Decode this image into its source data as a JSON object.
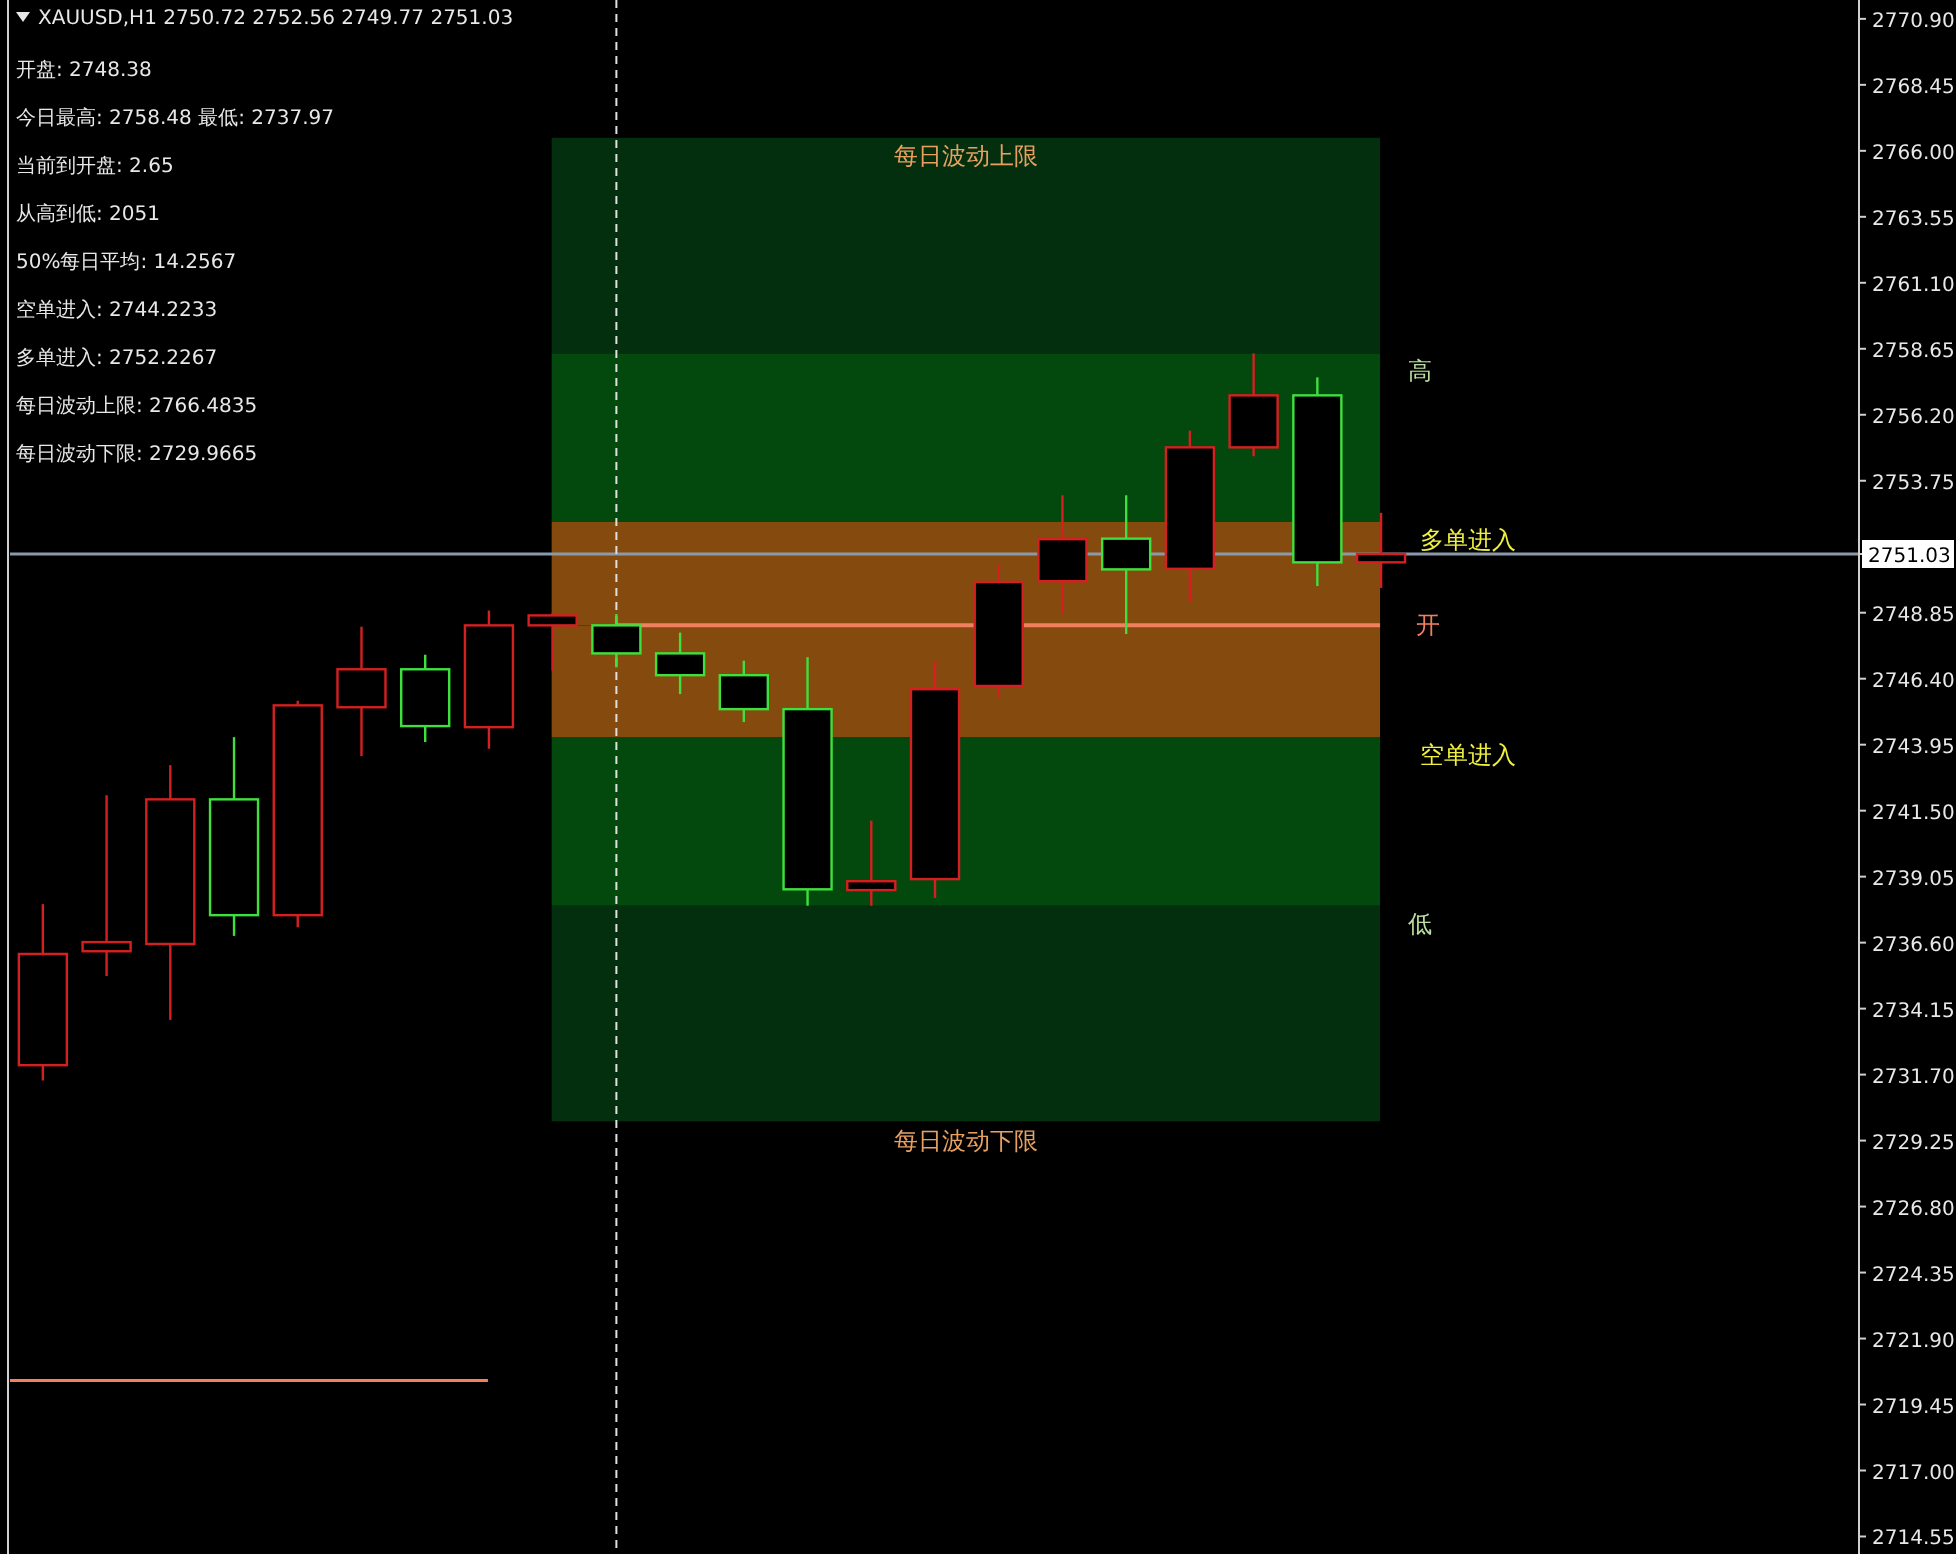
{
  "chart_data": {
    "type": "candlestick",
    "title": "XAUUSD,H1  2750.72 2752.56 2749.77 2751.03",
    "categories": [
      null,
      null,
      null,
      null,
      null,
      null,
      null,
      null,
      null,
      null,
      null,
      null,
      null,
      null,
      null,
      null,
      null,
      null,
      null,
      null,
      null,
      null,
      null,
      null,
      null,
      null,
      null,
      null,
      null
    ],
    "ohlc": [
      [
        2732.05,
        2738.03,
        2731.48,
        2736.18
      ],
      [
        2736.28,
        2742.07,
        2735.36,
        2736.62
      ],
      [
        2736.55,
        2743.19,
        2733.73,
        2741.92
      ],
      [
        2741.92,
        2744.23,
        2736.85,
        2737.62
      ],
      [
        2737.62,
        2745.58,
        2737.17,
        2745.41
      ],
      [
        2745.34,
        2748.33,
        2743.53,
        2746.75
      ],
      [
        2746.75,
        2747.29,
        2744.05,
        2744.64
      ],
      [
        2744.6,
        2748.93,
        2743.8,
        2748.38
      ],
      [
        2748.38,
        2748.85,
        2746.7,
        2748.75
      ],
      [
        2748.38,
        2748.8,
        2746.82,
        2747.34
      ],
      [
        2747.34,
        2748.11,
        2745.83,
        2746.53
      ],
      [
        2746.53,
        2747.07,
        2744.79,
        2745.27
      ],
      [
        2745.27,
        2747.2,
        2737.97,
        2738.58
      ],
      [
        2738.55,
        2741.13,
        2737.97,
        2738.88
      ],
      [
        2738.96,
        2747.07,
        2738.26,
        2746.01
      ],
      [
        2746.13,
        2750.66,
        2745.71,
        2749.99
      ],
      [
        2750.02,
        2753.21,
        2748.8,
        2751.58
      ],
      [
        2751.6,
        2753.21,
        2748.06,
        2750.46
      ],
      [
        2750.48,
        2755.61,
        2749.24,
        2754.99
      ],
      [
        2754.99,
        2758.48,
        2754.66,
        2756.92
      ],
      [
        2756.92,
        2757.59,
        2749.84,
        2750.72
      ],
      [
        2750.72,
        2752.56,
        2749.77,
        2751.03
      ],
      null,
      null,
      null,
      null,
      null,
      null,
      null
    ],
    "colors": [
      "#d42020",
      "#d42020",
      "#d42020",
      "#3ee03e",
      "#d42020",
      "#d42020",
      "#3ee03e",
      "#d42020",
      "#d42020",
      "#3ee03e",
      "#3ee03e",
      "#3ee03e",
      "#3ee03e",
      "#d42020",
      "#d42020",
      "#d42020",
      "#d42020",
      "#3ee03e",
      "#d42020",
      "#d42020",
      "#3ee03e",
      "#d42020",
      null,
      null,
      null,
      null,
      null,
      null,
      null
    ],
    "ylim": [
      2713.9,
      2771.6
    ],
    "yticks": [
      {
        "value": 2714.55,
        "label": "2714.55"
      },
      {
        "value": 2717.0,
        "label": "2717.00"
      },
      {
        "value": 2719.45,
        "label": "2719.45"
      },
      {
        "value": 2721.9,
        "label": "2721.90"
      },
      {
        "value": 2724.35,
        "label": "2724.35"
      },
      {
        "value": 2726.8,
        "label": "2726.80"
      },
      {
        "value": 2729.25,
        "label": "2729.25"
      },
      {
        "value": 2731.7,
        "label": "2731.70"
      },
      {
        "value": 2734.15,
        "label": "2734.15"
      },
      {
        "value": 2736.6,
        "label": "2736.60"
      },
      {
        "value": 2739.05,
        "label": "2739.05"
      },
      {
        "value": 2741.5,
        "label": "2741.50"
      },
      {
        "value": 2743.95,
        "label": "2743.95"
      },
      {
        "value": 2746.4,
        "label": "2746.40"
      },
      {
        "value": 2748.85,
        "label": "2748.85"
      },
      {
        "value": 2751.03,
        "label": "2751.03"
      },
      {
        "value": 2753.75,
        "label": "2753.75"
      },
      {
        "value": 2756.2,
        "label": "2756.20"
      },
      {
        "value": 2758.65,
        "label": "2758.65"
      },
      {
        "value": 2761.1,
        "label": "2761.10"
      },
      {
        "value": 2763.55,
        "label": "2763.55"
      },
      {
        "value": 2766.0,
        "label": "2766.00"
      },
      {
        "value": 2768.45,
        "label": "2768.45"
      },
      {
        "value": 2770.9,
        "label": "2770.90"
      }
    ],
    "tick_labels": "y",
    "grid": false,
    "bands": [
      {
        "axis": "y",
        "from": 2758.48,
        "to": 2766.4835,
        "label": "每日波动上限",
        "color": "#042f0f"
      },
      {
        "axis": "y",
        "from": 2729.9665,
        "to": 2737.97,
        "label": "每日波动下限",
        "color": "#042f0f"
      },
      {
        "axis": "y",
        "from": 2752.2267,
        "to": 2758.48,
        "label": "高",
        "color": "#03490e"
      },
      {
        "axis": "y",
        "from": 2737.97,
        "to": 2744.2233,
        "label": "低",
        "color": "#03490e"
      },
      {
        "axis": "y",
        "from": 2748.38,
        "to": 2752.2267,
        "label": "多单进入",
        "color": "#854a0e"
      },
      {
        "axis": "y",
        "from": 2744.2233,
        "to": 2748.38,
        "label": "空单进入",
        "color": "#854a0e"
      }
    ],
    "ref_lines": [
      {
        "axis": "y",
        "value": 2751.03,
        "color": "#8a9aa8",
        "line_style": "solid"
      },
      {
        "axis": "y",
        "value": 2748.38,
        "label": "开",
        "color": "#f08060",
        "line_style": "solid"
      },
      {
        "axis": "y",
        "value": 2720.34,
        "color": "#f08060",
        "line_style": "solid"
      }
    ],
    "annotations": [
      "开盘: 2748.38",
      "今日最高: 2758.48  最低: 2737.97",
      "当前到开盘: 2.65",
      "从高到低: 2051",
      "50%每日平均: 14.2567",
      "空单进入: 2744.2233",
      "多单进入: 2752.2267",
      "每日波动上限: 2766.4835",
      "每日波动下限: 2729.9665"
    ]
  }
}
